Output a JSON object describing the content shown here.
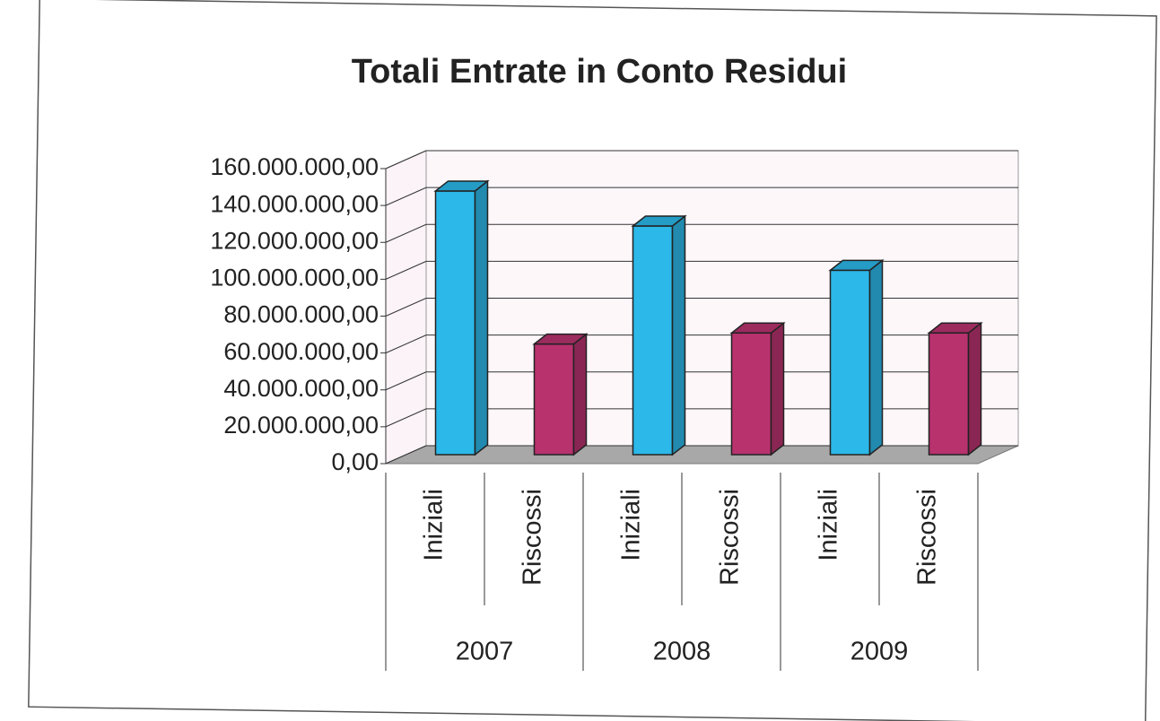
{
  "chart_data": {
    "type": "bar3d",
    "title": "Totali Entrate in Conto Residui",
    "categories": [
      "Iniziali",
      "Riscossi",
      "Iniziali",
      "Riscossi",
      "Iniziali",
      "Riscossi"
    ],
    "groups": [
      "2007",
      "2008",
      "2009"
    ],
    "values": [
      143000000,
      60000000,
      124000000,
      66000000,
      100000000,
      66000000
    ],
    "colors": [
      "#2cb8e8",
      "#b8326e",
      "#2cb8e8",
      "#b8326e",
      "#2cb8e8",
      "#b8326e"
    ],
    "ylim": [
      0,
      160000000
    ],
    "yticks": [
      {
        "value": 0,
        "label": "0,00"
      },
      {
        "value": 20000000,
        "label": "20.000.000,00"
      },
      {
        "value": 40000000,
        "label": "40.000.000,00"
      },
      {
        "value": 60000000,
        "label": "60.000.000,00"
      },
      {
        "value": 80000000,
        "label": "80.000.000,00"
      },
      {
        "value": 100000000,
        "label": "100.000.000,00"
      },
      {
        "value": 120000000,
        "label": "120.000.000,00"
      },
      {
        "value": 140000000,
        "label": "140.000.000,00"
      },
      {
        "value": 160000000,
        "label": "160.000.000,00"
      }
    ],
    "grid": true
  }
}
